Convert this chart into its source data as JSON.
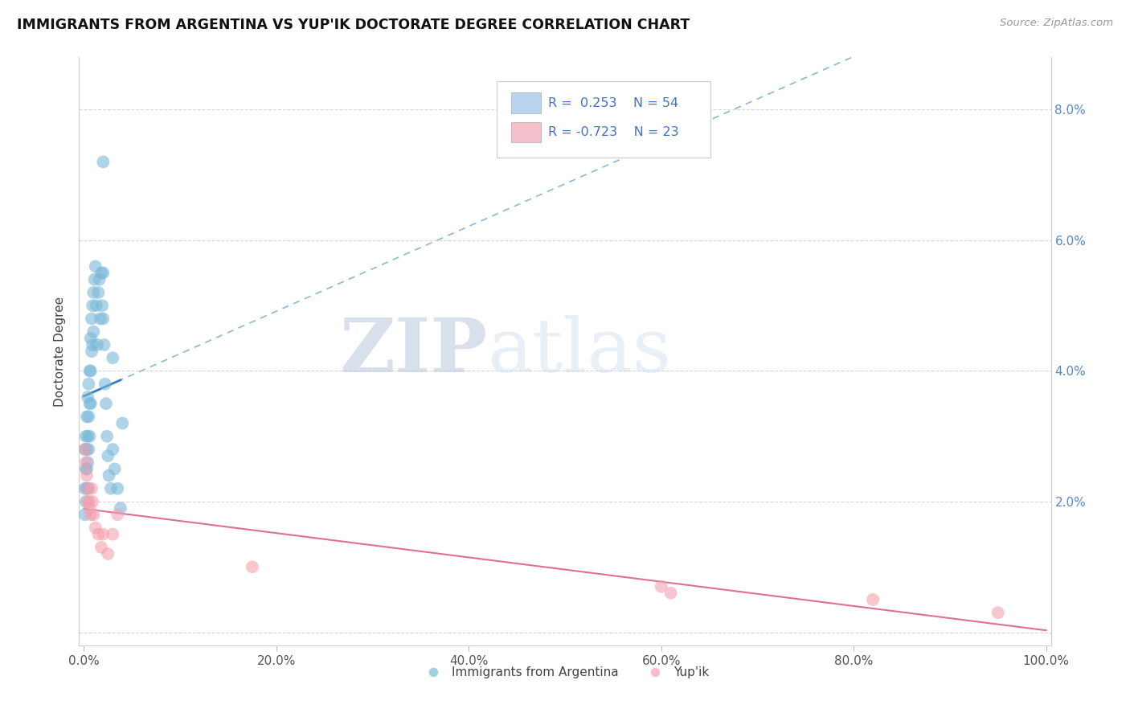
{
  "title": "IMMIGRANTS FROM ARGENTINA VS YUP'IK DOCTORATE DEGREE CORRELATION CHART",
  "source": "Source: ZipAtlas.com",
  "ylabel": "Doctorate Degree",
  "xlim": [
    -0.005,
    1.005
  ],
  "ylim": [
    -0.002,
    0.088
  ],
  "xtick_positions": [
    0.0,
    0.2,
    0.4,
    0.6,
    0.8,
    1.0
  ],
  "xtick_labels": [
    "0.0%",
    "20.0%",
    "40.0%",
    "60.0%",
    "80.0%",
    "100.0%"
  ],
  "ytick_positions": [
    0.0,
    0.02,
    0.04,
    0.06,
    0.08
  ],
  "ytick_labels_right": [
    "",
    "2.0%",
    "4.0%",
    "6.0%",
    "8.0%"
  ],
  "blue_dot_color": "#7bb8d8",
  "pink_dot_color": "#f4a0b0",
  "blue_line_color": "#3a7bbf",
  "blue_dash_color": "#8ab8d8",
  "pink_line_color": "#e07090",
  "legend_blue_fill": "#b8d4ee",
  "legend_pink_fill": "#f4c0cc",
  "R_blue": 0.253,
  "N_blue": 54,
  "R_pink": -0.723,
  "N_pink": 23,
  "legend_label_blue": "Immigrants from Argentina",
  "legend_label_pink": "Yup'ik",
  "blue_x": [
    0.001,
    0.001,
    0.001,
    0.002,
    0.002,
    0.002,
    0.003,
    0.003,
    0.003,
    0.003,
    0.004,
    0.004,
    0.004,
    0.005,
    0.005,
    0.005,
    0.005,
    0.006,
    0.006,
    0.006,
    0.007,
    0.007,
    0.007,
    0.008,
    0.008,
    0.009,
    0.009,
    0.01,
    0.01,
    0.011,
    0.012,
    0.013,
    0.014,
    0.015,
    0.016,
    0.017,
    0.018,
    0.019,
    0.02,
    0.02,
    0.021,
    0.022,
    0.023,
    0.024,
    0.025,
    0.026,
    0.028,
    0.03,
    0.032,
    0.035,
    0.038,
    0.02,
    0.03,
    0.04
  ],
  "blue_y": [
    0.028,
    0.022,
    0.018,
    0.03,
    0.025,
    0.02,
    0.033,
    0.028,
    0.025,
    0.022,
    0.036,
    0.03,
    0.026,
    0.038,
    0.033,
    0.028,
    0.022,
    0.04,
    0.035,
    0.03,
    0.045,
    0.04,
    0.035,
    0.048,
    0.043,
    0.05,
    0.044,
    0.052,
    0.046,
    0.054,
    0.056,
    0.05,
    0.044,
    0.052,
    0.054,
    0.048,
    0.055,
    0.05,
    0.055,
    0.048,
    0.044,
    0.038,
    0.035,
    0.03,
    0.027,
    0.024,
    0.022,
    0.028,
    0.025,
    0.022,
    0.019,
    0.072,
    0.042,
    0.032
  ],
  "pink_x": [
    0.001,
    0.002,
    0.003,
    0.004,
    0.004,
    0.005,
    0.006,
    0.007,
    0.008,
    0.009,
    0.01,
    0.012,
    0.015,
    0.018,
    0.02,
    0.025,
    0.03,
    0.035,
    0.175,
    0.6,
    0.61,
    0.82,
    0.95
  ],
  "pink_y": [
    0.028,
    0.026,
    0.024,
    0.022,
    0.02,
    0.02,
    0.019,
    0.018,
    0.022,
    0.02,
    0.018,
    0.016,
    0.015,
    0.013,
    0.015,
    0.012,
    0.015,
    0.018,
    0.01,
    0.007,
    0.006,
    0.005,
    0.003
  ]
}
